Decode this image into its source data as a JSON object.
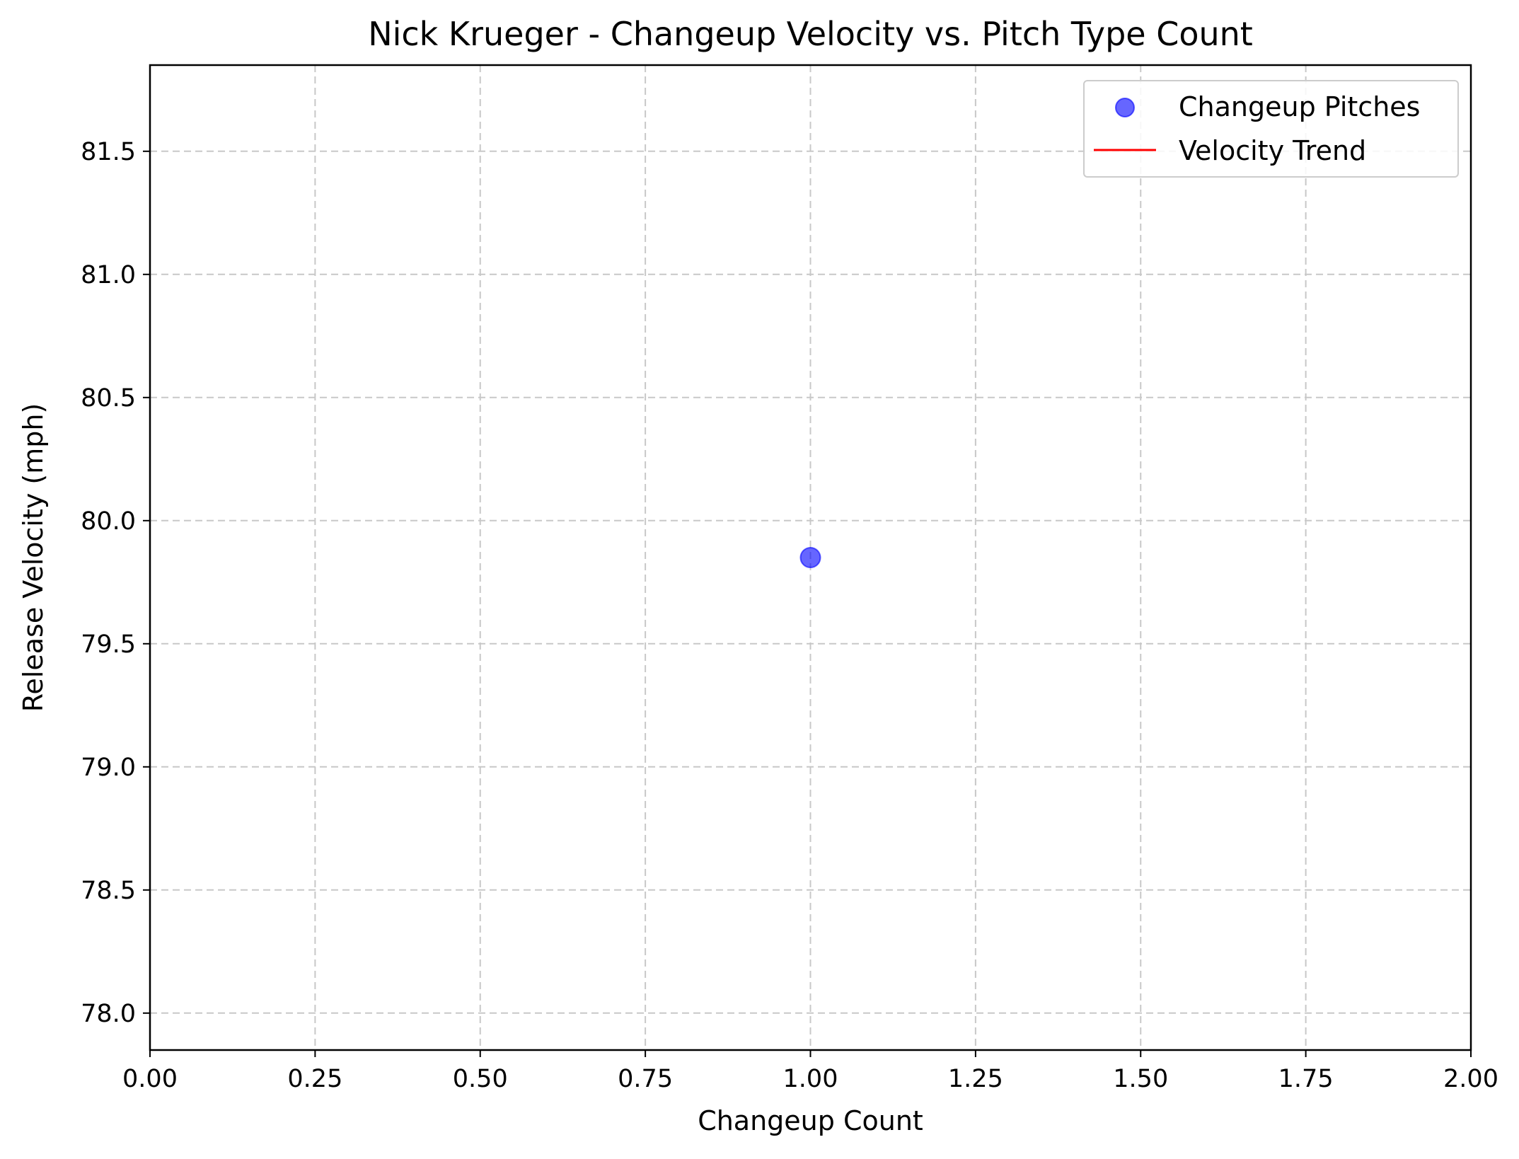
{
  "chart_data": {
    "type": "scatter",
    "title": "Nick Krueger - Changeup Velocity vs. Pitch Type Count",
    "xlabel": "Changeup Count",
    "ylabel": "Release Velocity (mph)",
    "xlim": [
      0,
      2
    ],
    "ylim": [
      77.85,
      81.85
    ],
    "x_ticks": [
      0.0,
      0.25,
      0.5,
      0.75,
      1.0,
      1.25,
      1.5,
      1.75,
      2.0
    ],
    "x_tick_labels": [
      "0.00",
      "0.25",
      "0.50",
      "0.75",
      "1.00",
      "1.25",
      "1.50",
      "1.75",
      "2.00"
    ],
    "y_ticks": [
      78.0,
      78.5,
      79.0,
      79.5,
      80.0,
      80.5,
      81.0,
      81.5
    ],
    "y_tick_labels": [
      "78.0",
      "78.5",
      "79.0",
      "79.5",
      "80.0",
      "80.5",
      "81.0",
      "81.5"
    ],
    "grid": true,
    "series": [
      {
        "name": "Changeup Pitches",
        "kind": "scatter",
        "color": "#0000ff",
        "points": [
          {
            "x": 1.0,
            "y": 79.85
          }
        ]
      },
      {
        "name": "Velocity Trend",
        "kind": "line",
        "color": "#ff0000",
        "points": []
      }
    ],
    "legend": {
      "position": "upper right",
      "entries": [
        "Changeup Pitches",
        "Velocity Trend"
      ]
    }
  }
}
